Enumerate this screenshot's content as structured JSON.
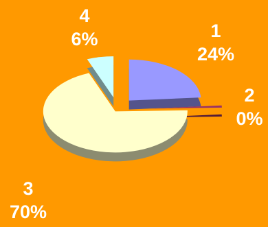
{
  "chart_data": {
    "type": "pie",
    "categories": [
      "1",
      "2",
      "3",
      "4"
    ],
    "values": [
      24,
      0,
      70,
      6
    ],
    "value_labels": [
      "24%",
      "0%",
      "70%",
      "6%"
    ],
    "colors": {
      "1": "#9999FF",
      "2": "#993366",
      "3": "#FFFFCC",
      "4": "#CCFFFF",
      "background": "#FF9900",
      "label": "#FFFFFF"
    },
    "exploded": true,
    "three_d": true,
    "legend": "none"
  }
}
